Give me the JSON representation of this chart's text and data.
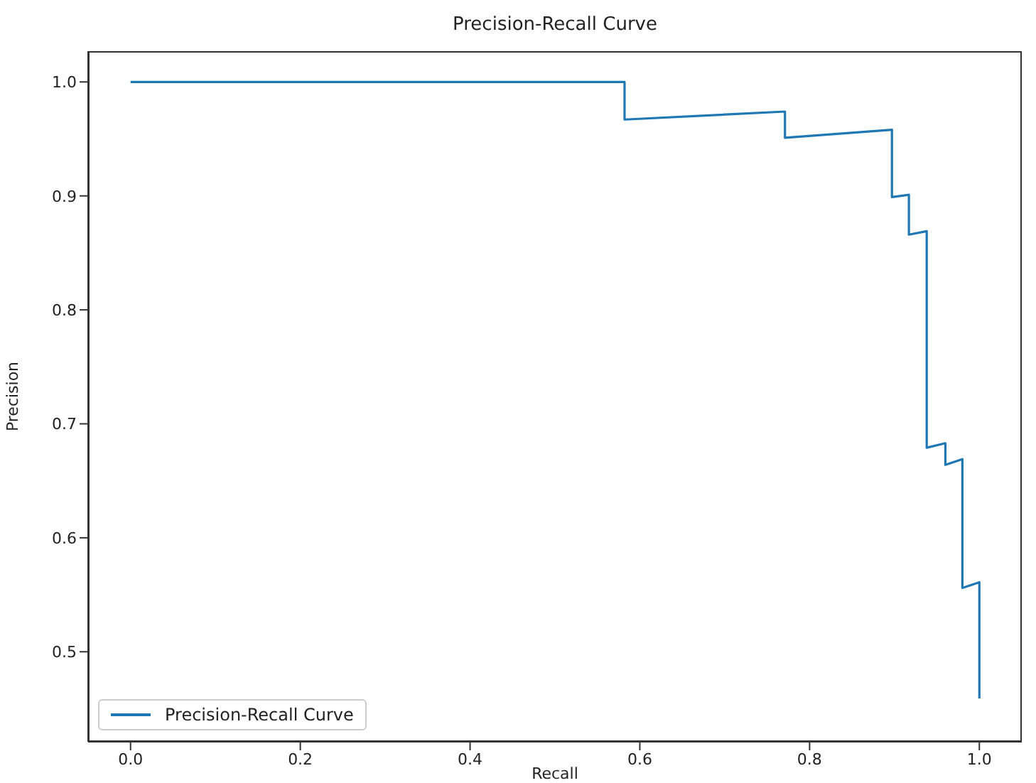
{
  "chart_data": {
    "type": "line",
    "title": "Precision-Recall Curve",
    "xlabel": "Recall",
    "ylabel": "Precision",
    "xlim": [
      -0.05,
      1.05
    ],
    "ylim": [
      0.421,
      1.027
    ],
    "xticks": [
      {
        "value": 0,
        "label": "0.0"
      },
      {
        "value": 0.2,
        "label": "0.2"
      },
      {
        "value": 0.4,
        "label": "0.4"
      },
      {
        "value": 0.6,
        "label": "0.6"
      },
      {
        "value": 0.8,
        "label": "0.8"
      },
      {
        "value": 1,
        "label": "1.0"
      }
    ],
    "yticks": [
      {
        "value": 0.5,
        "label": "0.5"
      },
      {
        "value": 0.6,
        "label": "0.6"
      },
      {
        "value": 0.7,
        "label": "0.7"
      },
      {
        "value": 0.8,
        "label": "0.8"
      },
      {
        "value": 0.9,
        "label": "0.9"
      },
      {
        "value": 1,
        "label": "1.0"
      }
    ],
    "grid": false,
    "legend": "bottom left",
    "marker": "none",
    "line_style": "solid",
    "series": [
      {
        "name": "Precision-Recall Curve",
        "color": "#1f77b4",
        "x": [
          0,
          0.582,
          0.582,
          0.771,
          0.771,
          0.897,
          0.897,
          0.917,
          0.917,
          0.938,
          0.938,
          0.96,
          0.96,
          0.98,
          0.98,
          1.0,
          1.0
        ],
        "values": [
          1,
          1,
          0.967,
          0.974,
          0.951,
          0.958,
          0.899,
          0.901,
          0.866,
          0.869,
          0.679,
          0.683,
          0.664,
          0.669,
          0.556,
          0.561,
          0.459
        ]
      }
    ]
  }
}
